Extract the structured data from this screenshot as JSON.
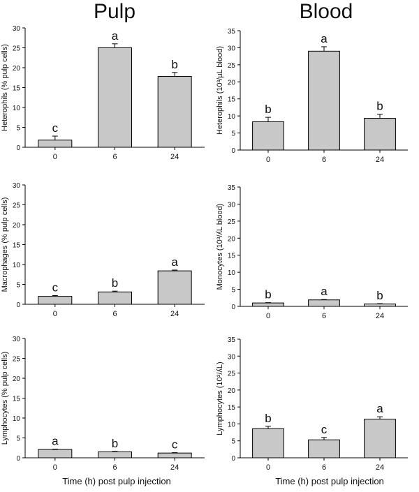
{
  "column_titles": [
    "Pulp",
    "Blood"
  ],
  "x_label": "Time (h) post pulp injection",
  "chart_data": [
    {
      "type": "bar",
      "ylabel": "Heterophils (% pulp cells)",
      "categories": [
        "0",
        "6",
        "24"
      ],
      "values": [
        1.8,
        25.0,
        17.8
      ],
      "errors": [
        1.0,
        1.0,
        1.0
      ],
      "letters": [
        "c",
        "a",
        "b"
      ],
      "ylim": [
        0,
        30
      ],
      "yticks": [
        0,
        5,
        10,
        15,
        20,
        25,
        30
      ]
    },
    {
      "type": "bar",
      "ylabel": "Heterophils (10³/µL blood)",
      "categories": [
        "0",
        "6",
        "24"
      ],
      "values": [
        8.3,
        29.0,
        9.3
      ],
      "errors": [
        1.3,
        1.3,
        1.2
      ],
      "letters": [
        "b",
        "a",
        "b"
      ],
      "ylim": [
        0,
        35
      ],
      "yticks": [
        0,
        5,
        10,
        15,
        20,
        25,
        30,
        35
      ]
    },
    {
      "type": "bar",
      "ylabel": "Macrophages (% pulp cells)",
      "categories": [
        "0",
        "6",
        "24"
      ],
      "values": [
        2.0,
        3.1,
        8.4
      ],
      "errors": [
        0.2,
        0.2,
        0.2
      ],
      "letters": [
        "c",
        "b",
        "a"
      ],
      "ylim": [
        0,
        30
      ],
      "yticks": [
        0,
        5,
        10,
        15,
        20,
        25,
        30
      ]
    },
    {
      "type": "bar",
      "ylabel": "Monocytes (10³/ʎL blood)",
      "categories": [
        "0",
        "6",
        "24"
      ],
      "values": [
        1.0,
        1.9,
        0.7
      ],
      "errors": [
        0.1,
        0.1,
        0.1
      ],
      "letters": [
        "b",
        "a",
        "b"
      ],
      "ylim": [
        0,
        35
      ],
      "yticks": [
        0,
        5,
        10,
        15,
        20,
        25,
        30,
        35
      ]
    },
    {
      "type": "bar",
      "ylabel": "Lymphocytes (% pulp cells)",
      "categories": [
        "0",
        "6",
        "24"
      ],
      "values": [
        2.1,
        1.5,
        1.2
      ],
      "errors": [
        0.1,
        0.1,
        0.1
      ],
      "letters": [
        "a",
        "b",
        "c"
      ],
      "ylim": [
        0,
        30
      ],
      "yticks": [
        0,
        5,
        10,
        15,
        20,
        25,
        30
      ]
    },
    {
      "type": "bar",
      "ylabel": "Lymphocytes (10³/ʎL)",
      "categories": [
        "0",
        "6",
        "24"
      ],
      "values": [
        8.6,
        5.3,
        11.4
      ],
      "errors": [
        0.7,
        0.7,
        0.7
      ],
      "letters": [
        "b",
        "c",
        "a"
      ],
      "ylim": [
        0,
        35
      ],
      "yticks": [
        0,
        5,
        10,
        15,
        20,
        25,
        30,
        35
      ]
    }
  ]
}
